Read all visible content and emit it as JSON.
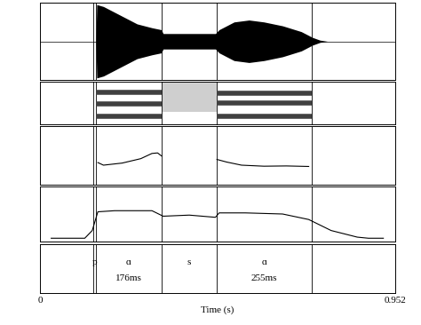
{
  "chart_data": {
    "type": "speech_analysis",
    "xlabel": "Time (s)",
    "xlim": [
      0,
      0.952
    ],
    "xticks": [
      0,
      0.952
    ],
    "tick_labels": "x",
    "waveform": {
      "type": "area",
      "color": "#000000",
      "ylim": [
        -1,
        1
      ],
      "x": [
        0.15,
        0.152,
        0.17,
        0.2,
        0.23,
        0.26,
        0.3,
        0.325,
        0.33,
        0.4,
        0.47,
        0.48,
        0.52,
        0.56,
        0.6,
        0.65,
        0.7,
        0.73,
        0.75,
        0.77
      ],
      "values": [
        0.0,
        0.95,
        0.9,
        0.75,
        0.6,
        0.45,
        0.35,
        0.3,
        0.2,
        0.2,
        0.2,
        0.3,
        0.5,
        0.55,
        0.5,
        0.4,
        0.25,
        0.1,
        0.03,
        0.0
      ]
    },
    "spectrogram": {
      "type": "spectrogram",
      "color": "#404040",
      "ylim": [
        0,
        5000
      ],
      "formants": [
        {
          "x": [
            0.15,
            0.326
          ],
          "values": [
            950,
            950
          ]
        },
        {
          "x": [
            0.15,
            0.326
          ],
          "values": [
            2400,
            2400
          ]
        },
        {
          "x": [
            0.15,
            0.326
          ],
          "values": [
            3700,
            3700
          ]
        },
        {
          "x": [
            0.474,
            0.729
          ],
          "values": [
            900,
            900
          ]
        },
        {
          "x": [
            0.474,
            0.729
          ],
          "values": [
            2500,
            2500
          ]
        },
        {
          "x": [
            0.474,
            0.729
          ],
          "values": [
            3600,
            3600
          ]
        }
      ],
      "noise": {
        "x": [
          0.326,
          0.474
        ],
        "range": [
          1500,
          5000
        ]
      }
    },
    "pitch": {
      "type": "line",
      "color": "#000000",
      "ylim": [
        75,
        300
      ],
      "series": [
        {
          "x": [
            0.155,
            0.17,
            0.22,
            0.27,
            0.3,
            0.315,
            0.326
          ],
          "values": [
            160,
            150,
            158,
            175,
            195,
            197,
            185
          ]
        },
        {
          "x": [
            0.474,
            0.5,
            0.54,
            0.6,
            0.66,
            0.72
          ],
          "values": [
            172,
            162,
            150,
            146,
            147,
            145
          ]
        }
      ]
    },
    "intensity": {
      "type": "line",
      "color": "#000000",
      "ylim": [
        50,
        100
      ],
      "x": [
        0.03,
        0.12,
        0.14,
        0.155,
        0.2,
        0.3,
        0.33,
        0.4,
        0.47,
        0.48,
        0.55,
        0.65,
        0.72,
        0.78,
        0.85,
        0.88,
        0.92
      ],
      "values": [
        53,
        53,
        60,
        77,
        78,
        78,
        73,
        74,
        72,
        76,
        76,
        75,
        70,
        60,
        54,
        53,
        53
      ]
    },
    "segments": [
      {
        "label": "p",
        "start": 0.143,
        "end": 0.15
      },
      {
        "label": "ɑ",
        "start": 0.15,
        "end": 0.326,
        "duration": "176ms"
      },
      {
        "label": "s",
        "start": 0.326,
        "end": 0.474
      },
      {
        "label": "ɑ",
        "start": 0.474,
        "end": 0.729,
        "duration": "255ms"
      }
    ]
  }
}
